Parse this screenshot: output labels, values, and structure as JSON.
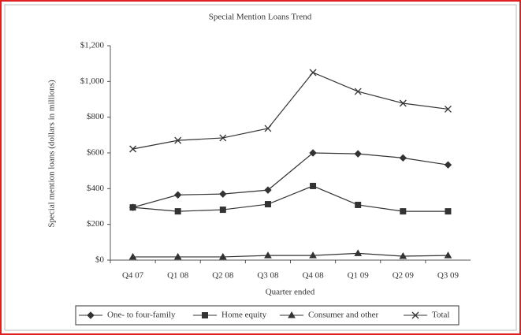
{
  "chart_data": {
    "type": "line",
    "title": "Special Mention Loans Trend",
    "x_label": "Quarter ended",
    "y_label": "Special mention loans (dollars in millions)",
    "categories": [
      "Q4 07",
      "Q1 08",
      "Q2 08",
      "Q3 08",
      "Q4 08",
      "Q1 09",
      "Q2 09",
      "Q3 09"
    ],
    "series": [
      {
        "name": "One- to four-family",
        "color": "#333333",
        "marker": "diamond",
        "values": [
          295,
          365,
          370,
          392,
          600,
          595,
          572,
          533
        ]
      },
      {
        "name": "Home equity",
        "color": "#333333",
        "marker": "square",
        "values": [
          295,
          273,
          282,
          313,
          415,
          309,
          273,
          273
        ]
      },
      {
        "name": "Consumer and other",
        "color": "#333333",
        "marker": "triangle",
        "values": [
          18,
          18,
          18,
          26,
          26,
          38,
          22,
          26
        ]
      },
      {
        "name": "Total",
        "color": "#333333",
        "marker": "x",
        "values": [
          622,
          670,
          684,
          737,
          1050,
          944,
          878,
          845
        ]
      }
    ],
    "ylim": [
      0,
      1200
    ],
    "yticks": [
      {
        "value": 0,
        "label": "$0"
      },
      {
        "value": 200,
        "label": "$200"
      },
      {
        "value": 400,
        "label": "$400"
      },
      {
        "value": 600,
        "label": "$600"
      },
      {
        "value": 800,
        "label": "$800"
      },
      {
        "value": 1000,
        "label": "$1,000"
      },
      {
        "value": 1200,
        "label": "$1,200"
      }
    ],
    "legend": "bottom"
  }
}
